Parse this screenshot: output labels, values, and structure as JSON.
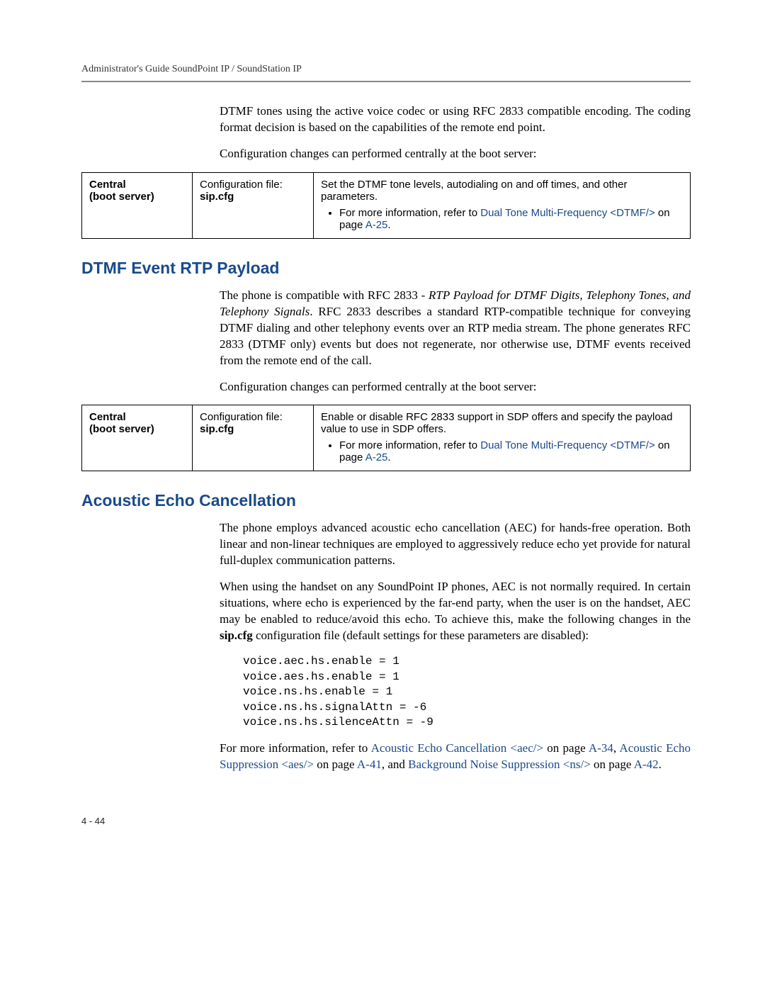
{
  "header": {
    "running_title": "Administrator's Guide SoundPoint IP / SoundStation IP"
  },
  "intro": {
    "p1_a": "DTMF tones using the active voice codec or using RFC 2833 compatible encoding. The coding format decision is based on the capabilities of the remote end point.",
    "p2": "Configuration changes can performed centrally at the boot server:"
  },
  "table1": {
    "c1_l1": "Central",
    "c1_l2": "(boot server)",
    "c2_l1": "Configuration file:",
    "c2_l2": "sip.cfg",
    "c3_line": "Set the DTMF tone levels, autodialing on and off times, and other parameters.",
    "c3_bullet_pre": "For more information, refer to ",
    "c3_link": "Dual Tone Multi-Frequency <DTMF/>",
    "c3_mid": " on page ",
    "c3_page": "A-25",
    "c3_end": "."
  },
  "section1": {
    "heading": "DTMF Event RTP Payload",
    "p1_a": "The phone is compatible with RFC 2833 - ",
    "p1_i": "RTP Payload for DTMF Digits, Telephony Tones, and Telephony Signals",
    "p1_b": ". RFC 2833 describes a standard RTP-compatible technique for conveying DTMF dialing and other telephony events over an RTP media stream. The phone generates RFC 2833 (DTMF only) events but does not regenerate, nor otherwise use, DTMF events received from the remote end of the call.",
    "p2": "Configuration changes can performed centrally at the boot server:"
  },
  "table2": {
    "c1_l1": "Central",
    "c1_l2": "(boot server)",
    "c2_l1": "Configuration file:",
    "c2_l2": "sip.cfg",
    "c3_line": "Enable or disable RFC 2833 support in SDP offers and specify the payload value to use in SDP offers.",
    "c3_bullet_pre": "For more information, refer to ",
    "c3_link": "Dual Tone Multi-Frequency <DTMF/>",
    "c3_mid": " on page ",
    "c3_page": "A-25",
    "c3_end": "."
  },
  "section2": {
    "heading": "Acoustic Echo Cancellation",
    "p1": "The phone employs advanced acoustic echo cancellation (AEC) for hands-free operation. Both linear and non-linear techniques are employed to aggressively reduce echo yet provide for natural full-duplex communication patterns.",
    "p2_a": "When using the handset on any SoundPoint IP phones, AEC is not normally required. In certain situations, where echo is experienced by the far-end party, when the user is on the handset, AEC may be enabled to reduce/avoid this echo. To achieve this, make the following changes in the ",
    "p2_bold": "sip.cfg",
    "p2_b": " configuration file (default settings for these parameters are disabled):",
    "code": "voice.aec.hs.enable = 1\nvoice.aes.hs.enable = 1\nvoice.ns.hs.enable = 1\nvoice.ns.hs.signalAttn = -6\nvoice.ns.hs.silenceAttn = -9",
    "p3_a": "For more information, refer to ",
    "p3_link1": "Acoustic Echo Cancellation <aec/>",
    "p3_b": " on page ",
    "p3_page1": "A-34",
    "p3_c": ", ",
    "p3_link2": "Acoustic Echo Suppression <aes/>",
    "p3_d": " on page ",
    "p3_page2": "A-41",
    "p3_e": ", and ",
    "p3_link3": "Background Noise Suppression <ns/>",
    "p3_f": " on page ",
    "p3_page3": "A-42",
    "p3_g": "."
  },
  "footer": {
    "page_num": "4 - 44"
  },
  "colors": {
    "heading": "#1a4a8a",
    "link": "#1a4a8a",
    "rule": "#888888",
    "text": "#000000",
    "background": "#ffffff"
  },
  "fonts": {
    "body": "Georgia serif",
    "heading": "Verdana sans-serif",
    "table": "Arial sans-serif",
    "code": "Courier New monospace"
  }
}
